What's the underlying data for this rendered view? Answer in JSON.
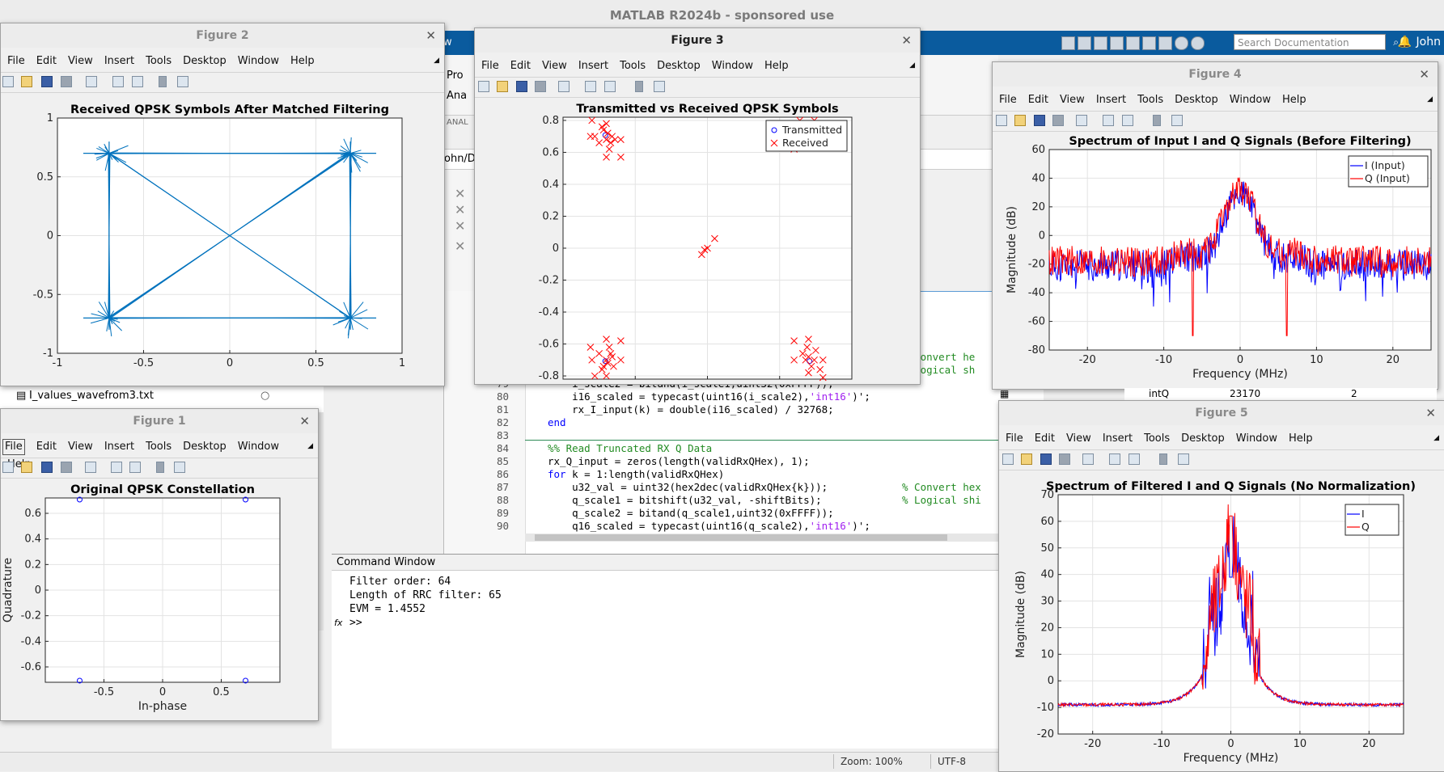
{
  "app": {
    "title": "MATLAB R2024b - sponsored use",
    "user": "John",
    "search_placeholder": "Search Documentation"
  },
  "desktop_fragments": {
    "toolstrip_tab": "ew",
    "toolstrip_item_1": "Pro",
    "toolstrip_item_2": "Ana",
    "toolstrip_section": "ANAL",
    "path_fragment": "ohn/De",
    "right_var_name": "intQ",
    "right_var_value": "23170",
    "right_var_size": "2"
  },
  "workspace_files": [
    {
      "name": "I_values_wavefrom3.txt"
    }
  ],
  "editor": {
    "lines": [
      {
        "num": "",
        "code": "",
        "comment": "% Convert he"
      },
      {
        "num": "",
        "code": "",
        "comment": "% Logical sh"
      },
      {
        "num": "79",
        "code": "    i_scale2 = bitand(i_scale1,uint32(0xFFFF));",
        "comment": ""
      },
      {
        "num": "80",
        "code": "    i16_scaled = typecast(uint16(i_scale2),",
        "str": "'int16'",
        "tail": ")';"
      },
      {
        "num": "81",
        "code": "    rx_I_input(k) = double(i16_scaled) / 32768;"
      },
      {
        "num": "82",
        "kw": "end"
      },
      {
        "num": "83",
        "code": ""
      },
      {
        "num": "84",
        "cmt": "%% Read Truncated RX Q Data"
      },
      {
        "num": "85",
        "code": "rx_Q_input = zeros(length(validRxQHex), 1);"
      },
      {
        "num": "86",
        "kw": "for",
        "code": " k = 1:length(validRxQHex)"
      },
      {
        "num": "87",
        "code": "    u32_val = uint32(hex2dec(validRxQHex{k}));",
        "comment": "% Convert hex"
      },
      {
        "num": "88",
        "code": "    q_scale1 = bitshift(u32_val, -shiftBits);",
        "comment": "% Logical shi"
      },
      {
        "num": "89",
        "code": "    q_scale2 = bitand(q_scale1,uint32(0xFFFF));"
      },
      {
        "num": "90",
        "code": "    q16_scaled = typecast(uint16(q_scale2),",
        "str": "'int16'",
        "tail": ")';"
      }
    ]
  },
  "command_window": {
    "title": "Command Window",
    "lines": [
      "Filter order: 64",
      "Length of RRC filter: 65",
      "EVM = 1.4552"
    ],
    "prompt": ">>",
    "fx": "fx"
  },
  "status_bar": {
    "zoom": "Zoom: 100%",
    "encoding": "UTF-8"
  },
  "menus": [
    "File",
    "Edit",
    "View",
    "Insert",
    "Tools",
    "Desktop",
    "Window",
    "Help"
  ],
  "figures": {
    "fig1": {
      "window_title": "Figure 1",
      "chart_data": {
        "type": "scatter",
        "title": "Original QPSK Constellation",
        "xlabel": "In-phase",
        "ylabel": "Quadrature",
        "xlim": [
          -1,
          1
        ],
        "ylim": [
          -0.72,
          0.72
        ],
        "xticks": [
          "-0.5",
          "0",
          "0.5"
        ],
        "yticks": [
          "0.6",
          "0.4",
          "0.2",
          "0",
          "-0.2",
          "-0.4",
          "-0.6"
        ],
        "points": [
          [
            -0.7071,
            0.7071
          ],
          [
            0.7071,
            0.7071
          ],
          [
            -0.7071,
            -0.7071
          ],
          [
            0.7071,
            -0.7071
          ]
        ],
        "marker": "o",
        "color": "#0000ff"
      }
    },
    "fig2": {
      "window_title": "Figure 2",
      "chart_data": {
        "type": "line",
        "title": "Received QPSK Symbols After Matched Filtering",
        "xlim": [
          -1,
          1
        ],
        "ylim": [
          -1,
          1
        ],
        "xticks": [
          "-1",
          "-0.5",
          "0",
          "0.5",
          "1"
        ],
        "yticks": [
          "1",
          "0.5",
          "0",
          "-0.5",
          "-1"
        ],
        "corners": [
          [
            -0.7,
            0.7
          ],
          [
            0.7,
            0.7
          ],
          [
            0.7,
            -0.7
          ],
          [
            -0.7,
            -0.7
          ]
        ],
        "color": "#0072bd"
      }
    },
    "fig3": {
      "window_title": "Figure 3",
      "chart_data": {
        "type": "scatter",
        "title": "Transmitted vs Received QPSK Symbols",
        "xlim": [
          -1,
          1
        ],
        "ylim": [
          -0.82,
          0.82
        ],
        "xticks": [
          "-1",
          "-0.5",
          "0",
          "0.5",
          "1"
        ],
        "yticks": [
          "0.8",
          "0.6",
          "0.4",
          "0.2",
          "0",
          "-0.2",
          "-0.4",
          "-0.6",
          "-0.8"
        ],
        "legend": "top-right",
        "series": [
          {
            "name": "Transmitted",
            "marker": "o",
            "color": "#0000ff",
            "points": [
              [
                -0.7071,
                0.7071
              ],
              [
                0.7071,
                0.7071
              ],
              [
                -0.7071,
                -0.7071
              ],
              [
                0.7071,
                -0.7071
              ]
            ]
          },
          {
            "name": "Received",
            "marker": "x",
            "color": "#ff0000",
            "points": [
              [
                -0.8,
                0.8
              ],
              [
                -0.78,
                0.7
              ],
              [
                -0.75,
                0.66
              ],
              [
                -0.72,
                0.74
              ],
              [
                -0.7,
                0.68
              ],
              [
                -0.68,
                0.62
              ],
              [
                -0.66,
                0.7
              ],
              [
                -0.73,
                0.76
              ],
              [
                -0.69,
                0.72
              ],
              [
                -0.67,
                0.66
              ],
              [
                -0.64,
                0.68
              ],
              [
                -0.7,
                0.57
              ],
              [
                -0.6,
                0.68
              ],
              [
                -0.6,
                0.57
              ],
              [
                -0.81,
                0.7
              ],
              [
                -0.7,
                0.78
              ],
              [
                0.64,
                0.8
              ],
              [
                0.7,
                0.78
              ],
              [
                0.74,
                0.8
              ],
              [
                0.6,
                0.62
              ],
              [
                -0.04,
                -0.04
              ],
              [
                -0.02,
                -0.01
              ],
              [
                0.0,
                0.0
              ],
              [
                0.05,
                0.06
              ],
              [
                -0.8,
                -0.7
              ],
              [
                -0.78,
                -0.8
              ],
              [
                -0.75,
                -0.66
              ],
              [
                -0.72,
                -0.74
              ],
              [
                -0.7,
                -0.7
              ],
              [
                -0.68,
                -0.62
              ],
              [
                -0.66,
                -0.68
              ],
              [
                -0.73,
                -0.76
              ],
              [
                -0.69,
                -0.72
              ],
              [
                -0.67,
                -0.66
              ],
              [
                -0.6,
                -0.58
              ],
              [
                -0.7,
                -0.57
              ],
              [
                -0.6,
                -0.7
              ],
              [
                -0.81,
                -0.62
              ],
              [
                -0.7,
                -0.8
              ],
              [
                -0.65,
                -0.74
              ],
              [
                0.66,
                -0.66
              ],
              [
                0.68,
                -0.7
              ],
              [
                0.7,
                -0.68
              ],
              [
                0.72,
                -0.74
              ],
              [
                0.74,
                -0.7
              ],
              [
                0.6,
                -0.58
              ],
              [
                0.7,
                -0.57
              ],
              [
                0.6,
                -0.7
              ],
              [
                0.8,
                -0.7
              ],
              [
                0.78,
                -0.76
              ],
              [
                0.7,
                -0.78
              ],
              [
                0.8,
                -0.81
              ],
              [
                0.75,
                -0.64
              ],
              [
                0.69,
                -0.62
              ]
            ]
          }
        ]
      }
    },
    "fig4": {
      "window_title": "Figure 4",
      "chart_data": {
        "type": "line",
        "title": "Spectrum of Input I and Q Signals (Before Filtering)",
        "xlabel": "Frequency (MHz)",
        "ylabel": "Magnitude (dB)",
        "xlim": [
          -25,
          25
        ],
        "ylim": [
          -80,
          60
        ],
        "xticks": [
          "-20",
          "-10",
          "0",
          "10",
          "20"
        ],
        "yticks": [
          "60",
          "40",
          "20",
          "0",
          "-20",
          "-40",
          "-60",
          "-80"
        ],
        "legend": "top-right",
        "series": [
          {
            "name": "I (Input)",
            "color": "#0000ff"
          },
          {
            "name": "Q (Input)",
            "color": "#ff0000"
          }
        ]
      }
    },
    "fig5": {
      "window_title": "Figure 5",
      "chart_data": {
        "type": "line",
        "title": "Spectrum of Filtered I and Q Signals (No Normalization)",
        "xlabel": "Frequency (MHz)",
        "ylabel": "Magnitude (dB)",
        "xlim": [
          -25,
          25
        ],
        "ylim": [
          -20,
          70
        ],
        "xticks": [
          "-20",
          "-10",
          "0",
          "10",
          "20"
        ],
        "yticks": [
          "70",
          "60",
          "50",
          "40",
          "30",
          "20",
          "10",
          "0",
          "-10",
          "-20"
        ],
        "legend": "top-right",
        "series": [
          {
            "name": "I",
            "color": "#0000ff"
          },
          {
            "name": "Q",
            "color": "#ff0000"
          }
        ]
      }
    }
  }
}
